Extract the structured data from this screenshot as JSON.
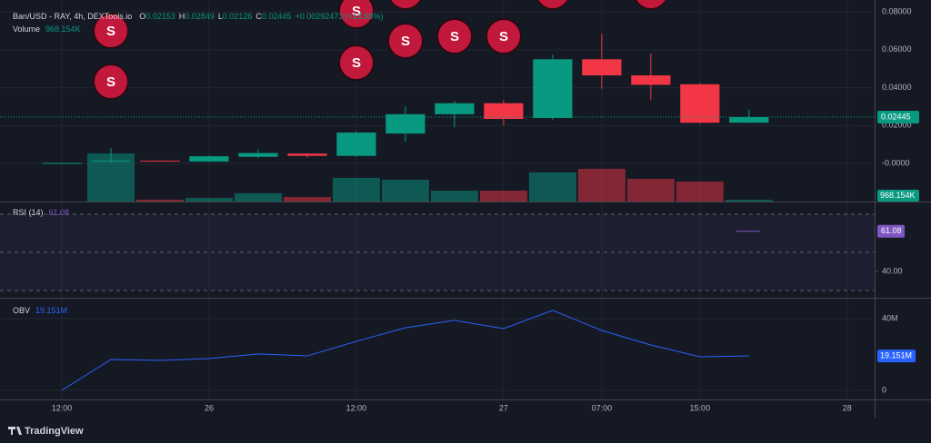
{
  "chart_data": {
    "type": "candlestick",
    "title": "Ban/USD - RAY, 4h, DEXTools.io",
    "ohlc_legend": [
      {
        "key": "O",
        "value": 0.02153
      },
      {
        "key": "H",
        "value": 0.02849
      },
      {
        "key": "L",
        "value": 0.02126
      },
      {
        "key": "C",
        "value": 0.02445
      }
    ],
    "change_label": "+0.00292473 (+13.58%)",
    "open": [
      0.0003,
      0.001,
      0.0015,
      0.001,
      0.0035,
      0.0052,
      0.004,
      0.0158,
      0.026,
      0.0318,
      0.024,
      0.055,
      0.0465,
      0.0418,
      0.02153
    ],
    "high": [
      0.0003,
      0.008,
      0.0016,
      0.0042,
      0.0075,
      0.0055,
      0.017,
      0.03,
      0.033,
      0.0335,
      0.0575,
      0.0685,
      0.058,
      0.0425,
      0.02849
    ],
    "low": [
      0.0003,
      0.0005,
      0.001,
      0.0008,
      0.003,
      0.003,
      0.0035,
      0.0115,
      0.019,
      0.02,
      0.023,
      0.0395,
      0.0335,
      0.021,
      0.02126
    ],
    "close": [
      0.0003,
      0.0015,
      0.0013,
      0.0038,
      0.0055,
      0.004,
      0.0163,
      0.026,
      0.0318,
      0.0235,
      0.055,
      0.0465,
      0.0415,
      0.0215,
      0.02445
    ],
    "up_color": "#089981",
    "down_color": "#f23645",
    "ylim": [
      -0.0201,
      0.0863
    ],
    "yticks": [
      {
        "value": 0.08,
        "label": "0.08000"
      },
      {
        "value": 0.06,
        "label": "0.06000"
      },
      {
        "value": 0.04,
        "label": "0.04000"
      },
      {
        "value": 0.02,
        "label": "0.02000"
      },
      {
        "value": 0,
        "label": "-0.0000"
      }
    ],
    "xlim": [
      -1.26,
      16.56
    ],
    "xticks": [
      {
        "value": 0,
        "label": "12:00"
      },
      {
        "value": 3,
        "label": "26"
      },
      {
        "value": 6,
        "label": "12:00"
      },
      {
        "value": 9,
        "label": "27"
      },
      {
        "value": 11,
        "label": "07:00"
      },
      {
        "value": 13,
        "label": "15:00"
      },
      {
        "value": 16,
        "label": "28"
      }
    ],
    "grid": true,
    "volume": {
      "name": "Volume",
      "values": [
        0,
        25600,
        1000,
        1900,
        4400,
        2400,
        12600,
        11600,
        5800,
        5800,
        15500,
        17400,
        12100,
        10600,
        968.154
      ],
      "value_labels": [
        null,
        null,
        null,
        null,
        null,
        null,
        null,
        null,
        null,
        null,
        null,
        null,
        null,
        null,
        "968.154K"
      ]
    },
    "rsi": {
      "name": "RSI (14)",
      "color": "#7e57c2",
      "values": [
        null,
        null,
        null,
        null,
        null,
        null,
        null,
        null,
        null,
        null,
        null,
        null,
        null,
        null,
        61.08
      ],
      "ylim": [
        26.7,
        75.7
      ],
      "yticks": [
        {
          "value": 40,
          "label": "40.00"
        }
      ],
      "levels": [
        70,
        50,
        30
      ]
    },
    "obv": {
      "name": "OBV",
      "color": "#2962ff",
      "values": [
        0,
        17.2,
        16.7,
        17.7,
        20.3,
        19.2,
        27.3,
        34.9,
        39,
        34.4,
        44.6,
        33.4,
        25.3,
        18.7,
        19.151
      ],
      "value_labels": [
        null,
        null,
        null,
        null,
        null,
        null,
        null,
        null,
        null,
        null,
        null,
        null,
        null,
        null,
        "19.151M"
      ],
      "ylim": [
        -5.06,
        50.6
      ],
      "yticks": [
        {
          "value": 40,
          "label": "40M"
        },
        0
      ]
    },
    "markers": [
      "S",
      "S",
      "S",
      "S",
      "S",
      "S",
      "S",
      "S",
      "S",
      "S"
    ]
  },
  "footer": "TradingView"
}
